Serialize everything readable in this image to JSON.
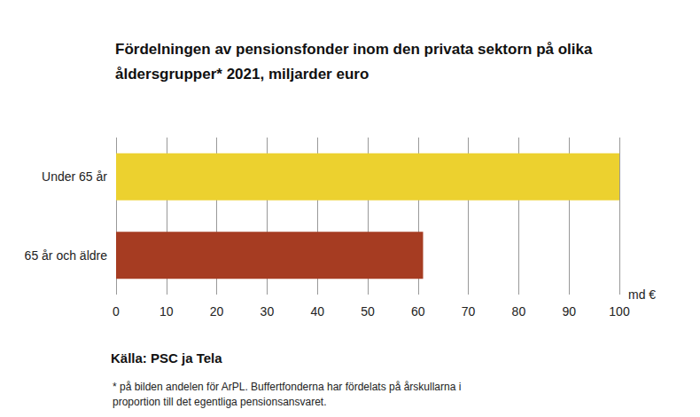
{
  "chart_data": {
    "type": "bar",
    "orientation": "horizontal",
    "title": "Fördelningen av pensionsfonder inom den privata sektorn på olika åldersgrupper* 2021, miljarder euro",
    "categories": [
      "Under 65 år",
      "65 år och äldre"
    ],
    "values": [
      100,
      61
    ],
    "colors": [
      "#ecd12f",
      "#a63c22"
    ],
    "x_label": "md €",
    "xlim": [
      0,
      100
    ],
    "xticks": [
      0,
      10,
      20,
      30,
      40,
      50,
      60,
      70,
      80,
      90,
      100
    ],
    "grid": true,
    "source": "Källa: PSC ja Tela",
    "note": "* på bilden andelen för ArPL. Buffertfonderna har fördelats på årskullarna i proportion till det egentliga pensionsansvaret."
  }
}
